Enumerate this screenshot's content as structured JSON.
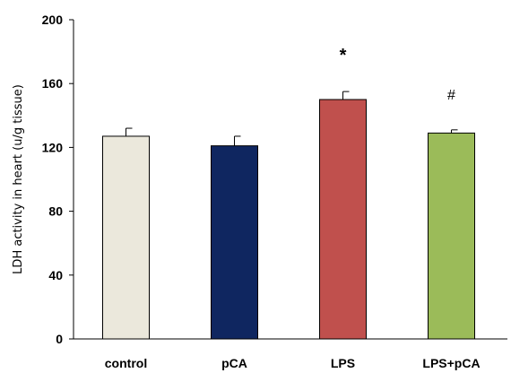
{
  "chart_data": {
    "type": "bar",
    "title": "",
    "xlabel": "",
    "ylabel": "LDH  activity  in heart (u/g tissue)",
    "ylim": [
      0,
      200
    ],
    "yticks": [
      0,
      40,
      80,
      120,
      160,
      200
    ],
    "grid": false,
    "categories": [
      "control",
      "pCA",
      "LPS",
      "LPS+pCA"
    ],
    "values": [
      127,
      121,
      150,
      129
    ],
    "errors": [
      5,
      6,
      5,
      2
    ],
    "colors": [
      "#ebe8dc",
      "#0f2660",
      "#c0504d",
      "#9bbb59"
    ],
    "annotations": [
      "",
      "",
      "*",
      "#"
    ]
  }
}
